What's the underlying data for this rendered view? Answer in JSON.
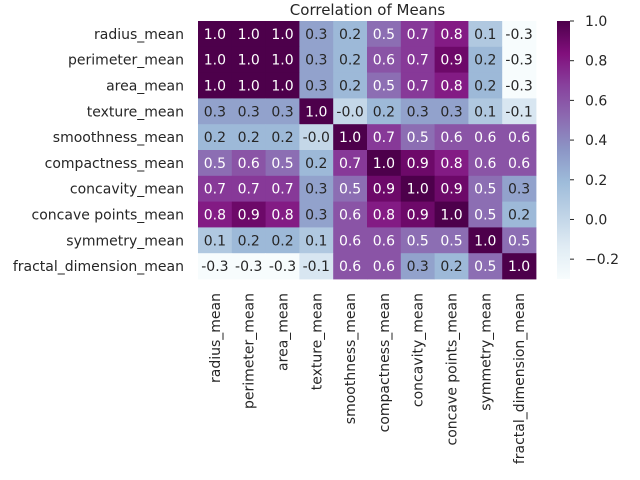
{
  "chart_data": {
    "type": "heatmap",
    "title": "Correlation of Means",
    "xlabel": "",
    "ylabel": "",
    "grid": false,
    "legend": "right",
    "colormap": "BuPu",
    "colormap_stops": [
      "#f7fcfd",
      "#e0ecf4",
      "#bfd3e6",
      "#9ebcda",
      "#8c96c6",
      "#8c6bb1",
      "#88419d",
      "#810f7c",
      "#4d004b"
    ],
    "value_range": [
      -0.3,
      1.0
    ],
    "colorbar": {
      "ticks": [
        -0.2,
        0.0,
        0.2,
        0.4,
        0.6,
        0.8,
        1.0
      ],
      "tick_labels": [
        "−0.2",
        "0.0",
        "0.2",
        "0.4",
        "0.6",
        "0.8",
        "1.0"
      ]
    },
    "rows": [
      "radius_mean",
      "perimeter_mean",
      "area_mean",
      "texture_mean",
      "smoothness_mean",
      "compactness_mean",
      "concavity_mean",
      "concave points_mean",
      "symmetry_mean",
      "fractal_dimension_mean"
    ],
    "columns": [
      "radius_mean",
      "perimeter_mean",
      "area_mean",
      "texture_mean",
      "smoothness_mean",
      "compactness_mean",
      "concavity_mean",
      "concave points_mean",
      "symmetry_mean",
      "fractal_dimension_mean"
    ],
    "values": [
      [
        1.0,
        1.0,
        1.0,
        0.3,
        0.2,
        0.5,
        0.7,
        0.8,
        0.1,
        -0.3
      ],
      [
        1.0,
        1.0,
        1.0,
        0.3,
        0.2,
        0.6,
        0.7,
        0.9,
        0.2,
        -0.3
      ],
      [
        1.0,
        1.0,
        1.0,
        0.3,
        0.2,
        0.5,
        0.7,
        0.8,
        0.2,
        -0.3
      ],
      [
        0.3,
        0.3,
        0.3,
        1.0,
        -0.0,
        0.2,
        0.3,
        0.3,
        0.1,
        -0.1
      ],
      [
        0.2,
        0.2,
        0.2,
        -0.0,
        1.0,
        0.7,
        0.5,
        0.6,
        0.6,
        0.6
      ],
      [
        0.5,
        0.6,
        0.5,
        0.2,
        0.7,
        1.0,
        0.9,
        0.8,
        0.6,
        0.6
      ],
      [
        0.7,
        0.7,
        0.7,
        0.3,
        0.5,
        0.9,
        1.0,
        0.9,
        0.5,
        0.3
      ],
      [
        0.8,
        0.9,
        0.8,
        0.3,
        0.6,
        0.8,
        0.9,
        1.0,
        0.5,
        0.2
      ],
      [
        0.1,
        0.2,
        0.2,
        0.1,
        0.6,
        0.6,
        0.5,
        0.5,
        1.0,
        0.5
      ],
      [
        -0.3,
        -0.3,
        -0.3,
        -0.1,
        0.6,
        0.6,
        0.3,
        0.2,
        0.5,
        1.0
      ]
    ],
    "cell_labels": [
      [
        "1.0",
        "1.0",
        "1.0",
        "0.3",
        "0.2",
        "0.5",
        "0.7",
        "0.8",
        "0.1",
        "-0.3"
      ],
      [
        "1.0",
        "1.0",
        "1.0",
        "0.3",
        "0.2",
        "0.6",
        "0.7",
        "0.9",
        "0.2",
        "-0.3"
      ],
      [
        "1.0",
        "1.0",
        "1.0",
        "0.3",
        "0.2",
        "0.5",
        "0.7",
        "0.8",
        "0.2",
        "-0.3"
      ],
      [
        "0.3",
        "0.3",
        "0.3",
        "1.0",
        "-0.0",
        "0.2",
        "0.3",
        "0.3",
        "0.1",
        "-0.1"
      ],
      [
        "0.2",
        "0.2",
        "0.2",
        "-0.0",
        "1.0",
        "0.7",
        "0.5",
        "0.6",
        "0.6",
        "0.6"
      ],
      [
        "0.5",
        "0.6",
        "0.5",
        "0.2",
        "0.7",
        "1.0",
        "0.9",
        "0.8",
        "0.6",
        "0.6"
      ],
      [
        "0.7",
        "0.7",
        "0.7",
        "0.3",
        "0.5",
        "0.9",
        "1.0",
        "0.9",
        "0.5",
        "0.3"
      ],
      [
        "0.8",
        "0.9",
        "0.8",
        "0.3",
        "0.6",
        "0.8",
        "0.9",
        "1.0",
        "0.5",
        "0.2"
      ],
      [
        "0.1",
        "0.2",
        "0.2",
        "0.1",
        "0.6",
        "0.6",
        "0.5",
        "0.5",
        "1.0",
        "0.5"
      ],
      [
        "-0.3",
        "-0.3",
        "-0.3",
        "-0.1",
        "0.6",
        "0.6",
        "0.3",
        "0.2",
        "0.5",
        "1.0"
      ]
    ]
  }
}
